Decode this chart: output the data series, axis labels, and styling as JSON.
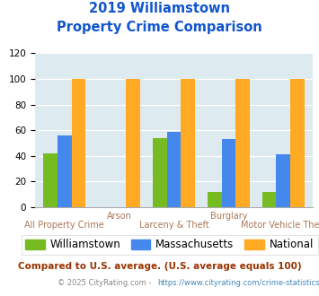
{
  "title_line1": "2019 Williamstown",
  "title_line2": "Property Crime Comparison",
  "categories": [
    "All Property Crime",
    "Arson",
    "Larceny & Theft",
    "Burglary",
    "Motor Vehicle Theft"
  ],
  "series": {
    "Williamstown": [
      42,
      0,
      54,
      12,
      12
    ],
    "Massachusetts": [
      56,
      0,
      59,
      53,
      41
    ],
    "National": [
      100,
      100,
      100,
      100,
      100
    ]
  },
  "colors": {
    "Williamstown": "#77bb22",
    "Massachusetts": "#4488ee",
    "National": "#ffaa22"
  },
  "ylim": [
    0,
    120
  ],
  "yticks": [
    0,
    20,
    40,
    60,
    80,
    100,
    120
  ],
  "plot_bg": "#ddeaf0",
  "title_color": "#1155cc",
  "xlabel_color": "#aa7755",
  "legend_fontsize": 8.5,
  "footnote1": "Compared to U.S. average. (U.S. average equals 100)",
  "footnote2": "© 2025 CityRating.com - https://www.cityrating.com/crime-statistics/",
  "footnote1_color": "#993300",
  "footnote2_color": "#5588bb",
  "footnote2_left": "© 2025 CityRating.com - ",
  "footnote2_link": "https://www.cityrating.com/crime-statistics/"
}
